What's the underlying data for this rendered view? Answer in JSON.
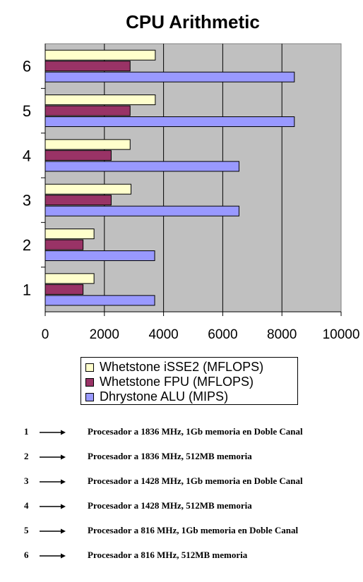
{
  "chart_data": {
    "type": "bar",
    "orientation": "horizontal",
    "title": "CPU Arithmetic",
    "categories": [
      "1",
      "2",
      "3",
      "4",
      "5",
      "6"
    ],
    "series": [
      {
        "name": "Whetstone iSSE2 (MFLOPS)",
        "color": "#ffffcc",
        "values": [
          1650,
          1650,
          2900,
          2870,
          3720,
          3720
        ]
      },
      {
        "name": "Whetstone FPU (MFLOPS)",
        "color": "#993366",
        "values": [
          1280,
          1280,
          2230,
          2230,
          2870,
          2870
        ]
      },
      {
        "name": "Dhrystone ALU (MIPS)",
        "color": "#9999ff",
        "values": [
          3700,
          3700,
          6550,
          6550,
          8420,
          8420
        ]
      }
    ],
    "xlim": [
      0,
      10000
    ],
    "xticks": [
      "0",
      "2000",
      "4000",
      "6000",
      "8000",
      "10000"
    ],
    "grid": true,
    "legend_position": "bottom",
    "plot_background": "#c0c0c0"
  },
  "notes": [
    {
      "num": "1",
      "text": "Procesador a 1836 MHz, 1Gb memoria en Doble Canal"
    },
    {
      "num": "2",
      "text": "Procesador a 1836 MHz, 512MB memoria"
    },
    {
      "num": "3",
      "text": "Procesador a 1428 MHz, 1Gb memoria en Doble Canal"
    },
    {
      "num": "4",
      "text": "Procesador a 1428 MHz, 512MB memoria"
    },
    {
      "num": "5",
      "text": "Procesador a 816 MHz, 1Gb memoria en Doble Canal"
    },
    {
      "num": "6",
      "text": "Procesador a 816 MHz, 512MB memoria"
    }
  ]
}
